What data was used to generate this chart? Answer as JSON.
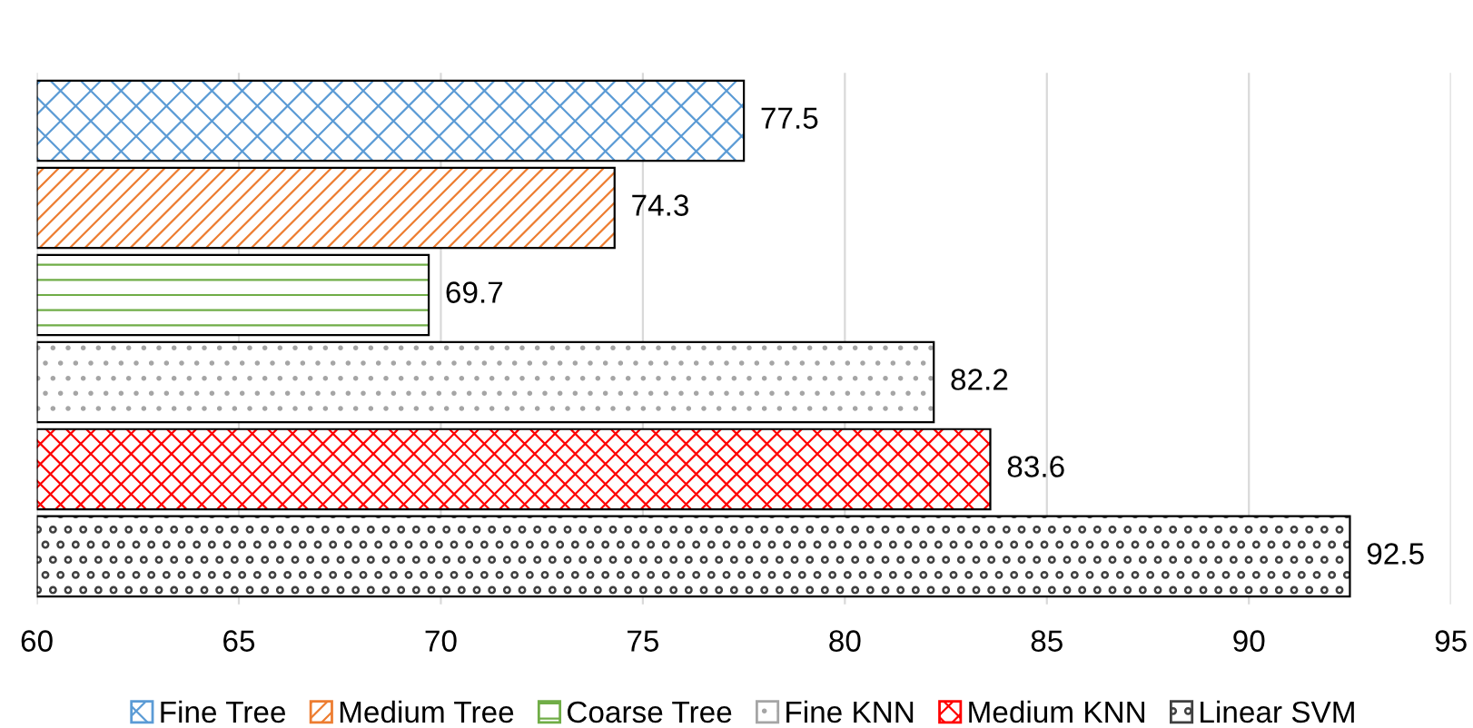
{
  "chart_data": {
    "type": "bar",
    "orientation": "horizontal",
    "categories": [
      null,
      null,
      null,
      null,
      null,
      null
    ],
    "series": [
      {
        "name": "Fine Tree",
        "color": "#5b9bd5",
        "values": [
          77.5,
          null,
          null,
          null,
          null,
          null
        ]
      },
      {
        "name": "Medium Tree",
        "color": "#ed7d31",
        "values": [
          null,
          74.3,
          null,
          null,
          null,
          null
        ]
      },
      {
        "name": "Coarse Tree",
        "color": "#70ad47",
        "values": [
          null,
          null,
          69.7,
          null,
          null,
          null
        ]
      },
      {
        "name": "Fine KNN",
        "color": "#a5a5a5",
        "values": [
          null,
          null,
          null,
          82.2,
          null,
          null
        ]
      },
      {
        "name": "Medium KNN",
        "color": "#ff0000",
        "values": [
          null,
          null,
          null,
          null,
          83.6,
          null
        ]
      },
      {
        "name": "Linear SVM",
        "color": "#404040",
        "values": [
          null,
          null,
          null,
          null,
          null,
          92.5
        ]
      }
    ],
    "xlim": [
      60,
      95
    ],
    "xticks": [
      60,
      65,
      70,
      75,
      80,
      85,
      90,
      95
    ],
    "grid": "x",
    "legend": "bottom",
    "data_labels": true
  }
}
